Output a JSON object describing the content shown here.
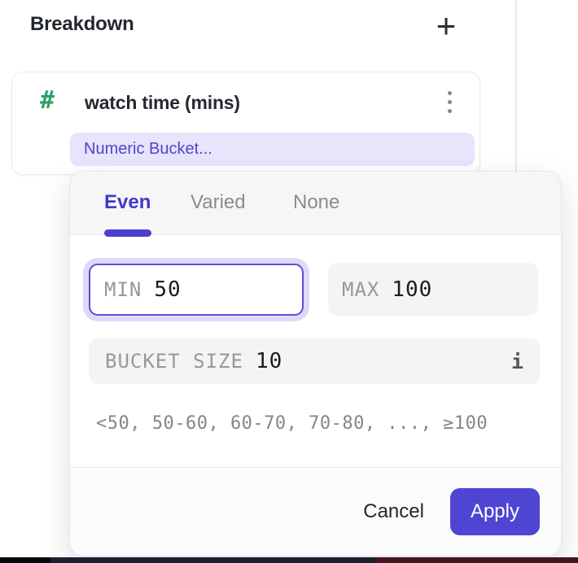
{
  "header": {
    "title": "Breakdown"
  },
  "icons": {
    "add": "+",
    "numeric_type": "#",
    "info": "i"
  },
  "breakdown_card": {
    "title": "watch time (mins)",
    "bucket_chip": "Numeric Bucket..."
  },
  "popover": {
    "tabs": [
      {
        "label": "Even",
        "active": true
      },
      {
        "label": "Varied",
        "active": false
      },
      {
        "label": "None",
        "active": false
      }
    ],
    "fields": {
      "min": {
        "label": "MIN",
        "value": "50"
      },
      "max": {
        "label": "MAX",
        "value": "100"
      },
      "bucket_size": {
        "label": "BUCKET SIZE",
        "value": "10"
      }
    },
    "preview": "<50, 50-60, 60-70, 70-80, ..., ≥100",
    "footer": {
      "cancel_label": "Cancel",
      "apply_label": "Apply"
    }
  },
  "colors": {
    "accent_purple": "#4f45d3",
    "tab_active": "#4338cb",
    "chip_bg": "#e7e4fb",
    "chip_text": "#4f46c8",
    "focus_border": "#5b50d6",
    "focus_ring": "#ded9f7",
    "field_bg": "#f4f4f5",
    "header_bg": "#f6f6f7",
    "hash_green": "#2f9e68",
    "strip_left": "#07090f",
    "strip_mid": "#1a202b",
    "strip_right": "#421620"
  }
}
